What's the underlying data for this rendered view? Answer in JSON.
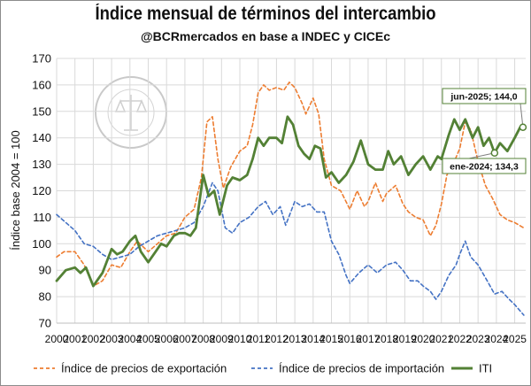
{
  "title": "Índice mensual de términos del intercambio",
  "subtitle": "@BCRmercados en base a INDEC y CICEc",
  "watermark": "BOLSA DE COMERCIO DE ROSARIO",
  "colors": {
    "export": "#ed7d31",
    "import": "#4472c4",
    "iti": "#538135",
    "grid": "#d9d9d9"
  },
  "chart_data": {
    "type": "line",
    "ylabel": "Índice base 2004 = 100",
    "ylim": [
      70,
      170
    ],
    "yticks": [
      70,
      80,
      90,
      100,
      110,
      120,
      130,
      140,
      150,
      160,
      170
    ],
    "xlim": [
      2000,
      2025.6
    ],
    "xticks": [
      "2000",
      "2001",
      "2002",
      "2003",
      "2004",
      "2005",
      "2006",
      "2007",
      "2008",
      "2009",
      "2010",
      "2011",
      "2012",
      "2013",
      "2014",
      "2015",
      "2016",
      "2017",
      "2018",
      "2019",
      "2020",
      "2021",
      "2022",
      "2023",
      "2024",
      "2025"
    ],
    "grid": true,
    "legend_position": "bottom",
    "series": [
      {
        "name": "Índice de precios de exportación",
        "key": "export",
        "style": "dashed",
        "points": [
          [
            2000,
            95
          ],
          [
            2000.4,
            97
          ],
          [
            2001,
            97
          ],
          [
            2001.5,
            92
          ],
          [
            2002,
            84
          ],
          [
            2002.5,
            86
          ],
          [
            2003,
            92
          ],
          [
            2003.5,
            91
          ],
          [
            2004,
            97
          ],
          [
            2004.4,
            101
          ],
          [
            2005,
            97
          ],
          [
            2005.5,
            100
          ],
          [
            2006,
            103
          ],
          [
            2006.5,
            104
          ],
          [
            2007,
            110
          ],
          [
            2007.5,
            113
          ],
          [
            2007.9,
            125
          ],
          [
            2008.2,
            146
          ],
          [
            2008.5,
            148
          ],
          [
            2008.8,
            132
          ],
          [
            2009.1,
            121
          ],
          [
            2009.5,
            129
          ],
          [
            2010,
            135
          ],
          [
            2010.4,
            137
          ],
          [
            2010.7,
            145
          ],
          [
            2011,
            157
          ],
          [
            2011.3,
            160
          ],
          [
            2011.6,
            158
          ],
          [
            2012,
            159
          ],
          [
            2012.4,
            158
          ],
          [
            2012.7,
            161
          ],
          [
            2013,
            159
          ],
          [
            2013.4,
            153
          ],
          [
            2013.6,
            149
          ],
          [
            2014,
            155
          ],
          [
            2014.3,
            149
          ],
          [
            2014.6,
            132
          ],
          [
            2015,
            122
          ],
          [
            2015.5,
            120
          ],
          [
            2016,
            113
          ],
          [
            2016.4,
            120
          ],
          [
            2016.8,
            114
          ],
          [
            2017,
            116
          ],
          [
            2017.4,
            123
          ],
          [
            2017.8,
            116
          ],
          [
            2018,
            119
          ],
          [
            2018.5,
            122
          ],
          [
            2018.9,
            115
          ],
          [
            2019.2,
            112
          ],
          [
            2019.6,
            110
          ],
          [
            2020,
            109
          ],
          [
            2020.4,
            103
          ],
          [
            2020.7,
            107
          ],
          [
            2021,
            115
          ],
          [
            2021.3,
            126
          ],
          [
            2021.7,
            131
          ],
          [
            2022,
            136
          ],
          [
            2022.3,
            146
          ],
          [
            2022.6,
            143
          ],
          [
            2023,
            131
          ],
          [
            2023.4,
            122
          ],
          [
            2023.8,
            117
          ],
          [
            2024.2,
            111
          ],
          [
            2024.6,
            109
          ],
          [
            2025,
            108
          ],
          [
            2025.5,
            106
          ]
        ]
      },
      {
        "name": "Índice de precios de importación",
        "key": "import",
        "style": "dashed",
        "points": [
          [
            2000,
            111
          ],
          [
            2000.5,
            108
          ],
          [
            2001,
            105
          ],
          [
            2001.5,
            100
          ],
          [
            2002,
            99
          ],
          [
            2002.5,
            96
          ],
          [
            2003,
            94
          ],
          [
            2003.5,
            95
          ],
          [
            2004,
            96
          ],
          [
            2004.5,
            99
          ],
          [
            2005,
            101
          ],
          [
            2005.5,
            103
          ],
          [
            2006,
            104
          ],
          [
            2006.5,
            105
          ],
          [
            2007,
            106
          ],
          [
            2007.5,
            108
          ],
          [
            2008,
            114
          ],
          [
            2008.5,
            123
          ],
          [
            2008.8,
            120
          ],
          [
            2009.2,
            106
          ],
          [
            2009.6,
            104
          ],
          [
            2010,
            108
          ],
          [
            2010.5,
            110
          ],
          [
            2011,
            114
          ],
          [
            2011.4,
            116
          ],
          [
            2011.8,
            111
          ],
          [
            2012.2,
            114
          ],
          [
            2012.5,
            107
          ],
          [
            2013,
            116
          ],
          [
            2013.4,
            114
          ],
          [
            2013.8,
            115
          ],
          [
            2014.2,
            112
          ],
          [
            2014.6,
            112
          ],
          [
            2015,
            101
          ],
          [
            2015.4,
            96
          ],
          [
            2015.8,
            88
          ],
          [
            2016,
            85
          ],
          [
            2016.5,
            89
          ],
          [
            2017,
            92
          ],
          [
            2017.5,
            89
          ],
          [
            2018,
            92
          ],
          [
            2018.5,
            93
          ],
          [
            2018.9,
            90
          ],
          [
            2019.3,
            86
          ],
          [
            2019.7,
            86
          ],
          [
            2020,
            84
          ],
          [
            2020.4,
            82
          ],
          [
            2020.7,
            79
          ],
          [
            2021,
            82
          ],
          [
            2021.4,
            88
          ],
          [
            2021.8,
            92
          ],
          [
            2022,
            96
          ],
          [
            2022.3,
            101
          ],
          [
            2022.6,
            95
          ],
          [
            2023,
            92
          ],
          [
            2023.5,
            86
          ],
          [
            2023.9,
            81
          ],
          [
            2024.3,
            82
          ],
          [
            2024.7,
            79
          ],
          [
            2025,
            77
          ],
          [
            2025.5,
            73
          ]
        ]
      },
      {
        "name": "ITI",
        "key": "iti",
        "style": "solid",
        "points": [
          [
            2000,
            86
          ],
          [
            2000.5,
            90
          ],
          [
            2001,
            91
          ],
          [
            2001.3,
            89
          ],
          [
            2001.6,
            91
          ],
          [
            2002,
            84
          ],
          [
            2002.5,
            89
          ],
          [
            2003,
            98
          ],
          [
            2003.3,
            96
          ],
          [
            2003.6,
            97
          ],
          [
            2004,
            101
          ],
          [
            2004.3,
            103
          ],
          [
            2004.6,
            97
          ],
          [
            2005,
            93
          ],
          [
            2005.4,
            97
          ],
          [
            2005.7,
            100
          ],
          [
            2006,
            99
          ],
          [
            2006.4,
            103
          ],
          [
            2006.7,
            104
          ],
          [
            2007,
            104
          ],
          [
            2007.3,
            103
          ],
          [
            2007.6,
            106
          ],
          [
            2008,
            126
          ],
          [
            2008.3,
            118
          ],
          [
            2008.6,
            120
          ],
          [
            2008.9,
            111
          ],
          [
            2009.3,
            122
          ],
          [
            2009.6,
            125
          ],
          [
            2010,
            124
          ],
          [
            2010.4,
            126
          ],
          [
            2010.7,
            132
          ],
          [
            2011,
            140
          ],
          [
            2011.3,
            137
          ],
          [
            2011.6,
            140
          ],
          [
            2012,
            140
          ],
          [
            2012.3,
            138
          ],
          [
            2012.6,
            148
          ],
          [
            2012.9,
            145
          ],
          [
            2013.2,
            137
          ],
          [
            2013.5,
            134
          ],
          [
            2013.8,
            132
          ],
          [
            2014.1,
            137
          ],
          [
            2014.4,
            136
          ],
          [
            2014.7,
            125
          ],
          [
            2015,
            127
          ],
          [
            2015.4,
            123
          ],
          [
            2015.8,
            126
          ],
          [
            2016.2,
            131
          ],
          [
            2016.6,
            139
          ],
          [
            2017,
            130
          ],
          [
            2017.4,
            128
          ],
          [
            2017.8,
            128
          ],
          [
            2018.1,
            135
          ],
          [
            2018.4,
            130
          ],
          [
            2018.8,
            133
          ],
          [
            2019.2,
            126
          ],
          [
            2019.6,
            130
          ],
          [
            2020,
            133
          ],
          [
            2020.4,
            128
          ],
          [
            2020.8,
            133
          ],
          [
            2021,
            132
          ],
          [
            2021.4,
            141
          ],
          [
            2021.7,
            147
          ],
          [
            2022,
            143
          ],
          [
            2022.3,
            147
          ],
          [
            2022.7,
            140
          ],
          [
            2023,
            144
          ],
          [
            2023.3,
            137
          ],
          [
            2023.6,
            140
          ],
          [
            2023.9,
            134.3
          ],
          [
            2024.2,
            138
          ],
          [
            2024.6,
            135
          ],
          [
            2025,
            140
          ],
          [
            2025.3,
            144
          ],
          [
            2025.45,
            144
          ]
        ]
      }
    ],
    "annotations": [
      {
        "label": "jun-2025; 144,0",
        "x": 2025.45,
        "y": 144.0
      },
      {
        "label": "ene-2024; 134,3",
        "x": 2023.9,
        "y": 134.3
      }
    ]
  }
}
